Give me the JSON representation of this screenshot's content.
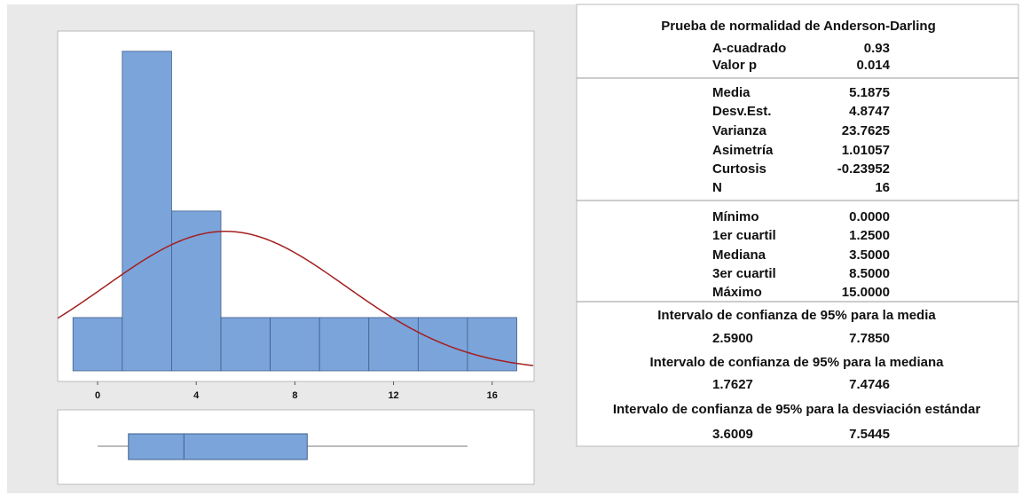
{
  "histogram": {
    "type": "histogram",
    "bins": [
      -1,
      1,
      3,
      5,
      7,
      9,
      11,
      13,
      15,
      17
    ],
    "counts": [
      1,
      6,
      3,
      1,
      1,
      1,
      1,
      1,
      1
    ],
    "color": "#7ba4db",
    "curve_color": "#a31f1f",
    "xlim": [
      -1.62,
      17.7
    ],
    "ylim": [
      -0.2,
      6.38
    ],
    "xticks": [
      0,
      4,
      8,
      12,
      16
    ]
  },
  "boxplot": {
    "type": "box",
    "color": "#7ba4db"
  },
  "summary": {
    "normality": {
      "title": "Prueba de normalidad de Anderson-Darling",
      "rows": [
        [
          "A-cuadrado",
          "0.93"
        ],
        [
          "Valor p",
          "0.014"
        ]
      ]
    },
    "stats": {
      "rows": [
        [
          "Media",
          "5.1875"
        ],
        [
          "Desv.Est.",
          "4.8747"
        ],
        [
          "Varianza",
          "23.7625"
        ],
        [
          "Asimetría",
          "1.01057"
        ],
        [
          "Curtosis",
          "-0.23952"
        ],
        [
          "N",
          "16"
        ]
      ]
    },
    "quartiles": {
      "rows": [
        [
          "Mínimo",
          "0.0000"
        ],
        [
          "1er cuartil",
          "1.2500"
        ],
        [
          "Mediana",
          "3.5000"
        ],
        [
          "3er cuartil",
          "8.5000"
        ],
        [
          "Máximo",
          "15.0000"
        ]
      ]
    },
    "intervals": [
      {
        "title": "Intervalo de confianza de 95% para la media",
        "values": [
          "2.5900",
          "7.7850"
        ]
      },
      {
        "title": "Intervalo de confianza de 95% para la mediana",
        "values": [
          "1.7627",
          "7.4746"
        ]
      },
      {
        "title": "Intervalo de confianza de 95% para la desviación estándar",
        "values": [
          "3.6009",
          "7.5445"
        ]
      }
    ]
  }
}
